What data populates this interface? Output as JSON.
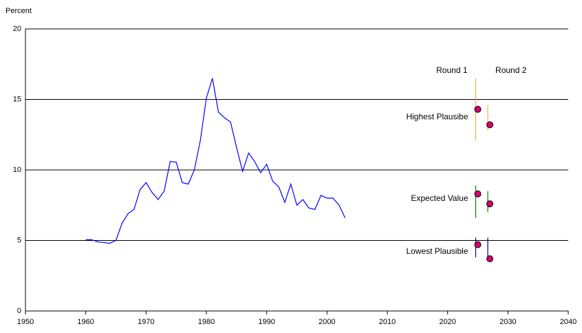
{
  "chart_data": {
    "type": "line",
    "y_label": "Percent",
    "x": [
      1960,
      1961,
      1962,
      1963,
      1964,
      1965,
      1966,
      1967,
      1968,
      1969,
      1970,
      1971,
      1972,
      1973,
      1974,
      1975,
      1976,
      1977,
      1978,
      1979,
      1980,
      1981,
      1982,
      1983,
      1984,
      1985,
      1986,
      1987,
      1988,
      1989,
      1990,
      1991,
      1992,
      1993,
      1994,
      1995,
      1996,
      1997,
      1998,
      1999,
      2000,
      2001,
      2002,
      2003
    ],
    "series": [
      {
        "color": "#0000ff",
        "values": [
          5.05,
          5.05,
          4.9,
          4.85,
          4.8,
          5.0,
          6.2,
          6.9,
          7.2,
          8.6,
          9.1,
          8.4,
          7.9,
          8.5,
          10.6,
          10.55,
          9.1,
          9.0,
          10.0,
          12.1,
          15.1,
          16.5,
          14.1,
          13.7,
          13.4,
          11.6,
          9.9,
          11.2,
          10.6,
          9.8,
          10.4,
          9.2,
          8.8,
          7.7,
          9.0,
          7.5,
          7.9,
          7.3,
          7.2,
          8.2,
          8.0,
          8.0,
          7.5,
          6.6
        ]
      }
    ],
    "round_labels": [
      "Round 1",
      "Round 2"
    ],
    "round_x": [
      2025,
      2027
    ],
    "estimates": [
      {
        "label": "Highest Plausibe",
        "color": "#f0b040",
        "rounds": [
          {
            "value": 14.3,
            "low": 12.1,
            "high": 16.5
          },
          {
            "value": 13.2,
            "low": 12.8,
            "high": 14.6
          }
        ]
      },
      {
        "label": "Expected Value",
        "color": "#008000",
        "rounds": [
          {
            "value": 8.3,
            "low": 6.6,
            "high": 8.9
          },
          {
            "value": 7.6,
            "low": 7.0,
            "high": 8.5
          }
        ]
      },
      {
        "label": "Lowest Plausible",
        "color": "#000080",
        "rounds": [
          {
            "value": 4.7,
            "low": 3.8,
            "high": 5.2
          },
          {
            "value": 3.7,
            "low": 3.6,
            "high": 5.2
          }
        ]
      }
    ],
    "point_color": "#d6006e",
    "xlim": [
      1950,
      2040
    ],
    "xticks": [
      1950,
      1960,
      1970,
      1980,
      1990,
      2000,
      2010,
      2020,
      2030,
      2040
    ],
    "ylim": [
      0,
      20
    ],
    "yticks": [
      0,
      5,
      10,
      15,
      20
    ],
    "grid": true
  }
}
